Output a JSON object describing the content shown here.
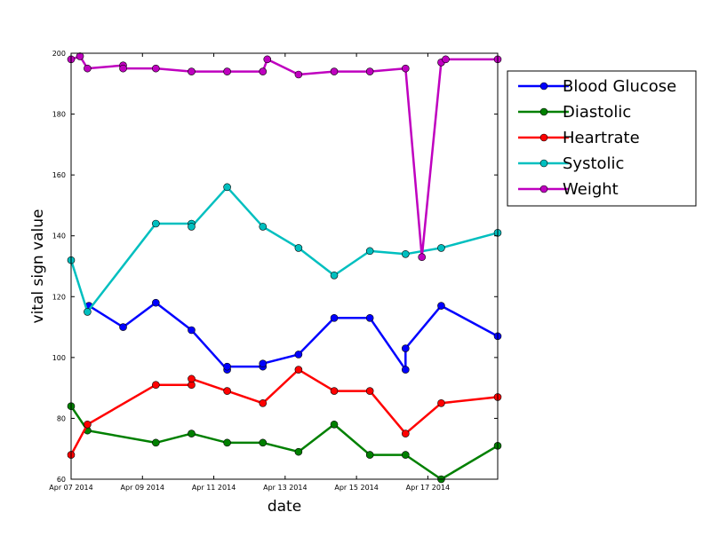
{
  "chart_data": {
    "type": "line",
    "title": "",
    "xlabel": "date",
    "ylabel": "vital sign value",
    "xlim": [
      "2014-04-07",
      "2014-04-18T23:00"
    ],
    "ylim": [
      60,
      200
    ],
    "x_ticks": [
      {
        "x": "2014-04-07",
        "label": "Apr 07 2014"
      },
      {
        "x": "2014-04-09",
        "label": "Apr 09 2014"
      },
      {
        "x": "2014-04-11",
        "label": "Apr 11 2014"
      },
      {
        "x": "2014-04-13",
        "label": "Apr 13 2014"
      },
      {
        "x": "2014-04-15",
        "label": "Apr 15 2014"
      },
      {
        "x": "2014-04-17",
        "label": "Apr 17 2014"
      }
    ],
    "y_ticks": [
      60,
      80,
      100,
      120,
      140,
      160,
      180,
      200
    ],
    "grid": false,
    "legend_position": "outside right, top",
    "series": [
      {
        "name": "Blood Glucose",
        "color": "#0000ff",
        "points": [
          {
            "x": "2014-04-07T12:00",
            "y": 117
          },
          {
            "x": "2014-04-08T11:00",
            "y": 110
          },
          {
            "x": "2014-04-09T09:00",
            "y": 118
          },
          {
            "x": "2014-04-10T09:00",
            "y": 109
          },
          {
            "x": "2014-04-11T09:00",
            "y": 96
          },
          {
            "x": "2014-04-11T09:00",
            "y": 97
          },
          {
            "x": "2014-04-12T09:00",
            "y": 97
          },
          {
            "x": "2014-04-12T09:00",
            "y": 98
          },
          {
            "x": "2014-04-13T09:00",
            "y": 101
          },
          {
            "x": "2014-04-14T09:00",
            "y": 113
          },
          {
            "x": "2014-04-15T09:00",
            "y": 113
          },
          {
            "x": "2014-04-16T09:00",
            "y": 96
          },
          {
            "x": "2014-04-16T09:00",
            "y": 103
          },
          {
            "x": "2014-04-17T09:00",
            "y": 117
          },
          {
            "x": "2014-04-18T23:00",
            "y": 107
          }
        ]
      },
      {
        "name": "Diastolic",
        "color": "#008000",
        "points": [
          {
            "x": "2014-04-07T00:00",
            "y": 84
          },
          {
            "x": "2014-04-07T11:00",
            "y": 76
          },
          {
            "x": "2014-04-09T09:00",
            "y": 72
          },
          {
            "x": "2014-04-10T09:00",
            "y": 75
          },
          {
            "x": "2014-04-11T09:00",
            "y": 72
          },
          {
            "x": "2014-04-12T09:00",
            "y": 72
          },
          {
            "x": "2014-04-13T09:00",
            "y": 69
          },
          {
            "x": "2014-04-14T09:00",
            "y": 78
          },
          {
            "x": "2014-04-15T09:00",
            "y": 68
          },
          {
            "x": "2014-04-16T09:00",
            "y": 68
          },
          {
            "x": "2014-04-17T09:00",
            "y": 60
          },
          {
            "x": "2014-04-18T23:00",
            "y": 71
          }
        ]
      },
      {
        "name": "Heartrate",
        "color": "#ff0000",
        "points": [
          {
            "x": "2014-04-07T00:00",
            "y": 68
          },
          {
            "x": "2014-04-07T11:00",
            "y": 78
          },
          {
            "x": "2014-04-09T09:00",
            "y": 91
          },
          {
            "x": "2014-04-10T09:00",
            "y": 91
          },
          {
            "x": "2014-04-10T09:00",
            "y": 93
          },
          {
            "x": "2014-04-11T09:00",
            "y": 89
          },
          {
            "x": "2014-04-12T09:00",
            "y": 85
          },
          {
            "x": "2014-04-13T09:00",
            "y": 96
          },
          {
            "x": "2014-04-14T09:00",
            "y": 89
          },
          {
            "x": "2014-04-15T09:00",
            "y": 89
          },
          {
            "x": "2014-04-16T09:00",
            "y": 75
          },
          {
            "x": "2014-04-17T09:00",
            "y": 85
          },
          {
            "x": "2014-04-18T23:00",
            "y": 87
          }
        ]
      },
      {
        "name": "Systolic",
        "color": "#00bfbf",
        "points": [
          {
            "x": "2014-04-07T00:00",
            "y": 132
          },
          {
            "x": "2014-04-07T11:00",
            "y": 115
          },
          {
            "x": "2014-04-09T09:00",
            "y": 144
          },
          {
            "x": "2014-04-10T09:00",
            "y": 144
          },
          {
            "x": "2014-04-10T09:00",
            "y": 143
          },
          {
            "x": "2014-04-11T09:00",
            "y": 156
          },
          {
            "x": "2014-04-12T09:00",
            "y": 143
          },
          {
            "x": "2014-04-13T09:00",
            "y": 136
          },
          {
            "x": "2014-04-14T09:00",
            "y": 127
          },
          {
            "x": "2014-04-15T09:00",
            "y": 135
          },
          {
            "x": "2014-04-16T09:00",
            "y": 134
          },
          {
            "x": "2014-04-17T09:00",
            "y": 136
          },
          {
            "x": "2014-04-18T23:00",
            "y": 141
          }
        ]
      },
      {
        "name": "Weight",
        "color": "#bf00bf",
        "points": [
          {
            "x": "2014-04-07T00:00",
            "y": 198
          },
          {
            "x": "2014-04-07T06:00",
            "y": 199
          },
          {
            "x": "2014-04-07T11:00",
            "y": 195
          },
          {
            "x": "2014-04-08T11:00",
            "y": 196
          },
          {
            "x": "2014-04-08T11:00",
            "y": 195
          },
          {
            "x": "2014-04-09T09:00",
            "y": 195
          },
          {
            "x": "2014-04-10T09:00",
            "y": 194
          },
          {
            "x": "2014-04-11T09:00",
            "y": 194
          },
          {
            "x": "2014-04-12T09:00",
            "y": 194
          },
          {
            "x": "2014-04-12T12:00",
            "y": 198
          },
          {
            "x": "2014-04-13T09:00",
            "y": 193
          },
          {
            "x": "2014-04-14T09:00",
            "y": 194
          },
          {
            "x": "2014-04-15T09:00",
            "y": 194
          },
          {
            "x": "2014-04-16T09:00",
            "y": 195
          },
          {
            "x": "2014-04-16T20:00",
            "y": 133
          },
          {
            "x": "2014-04-17T09:00",
            "y": 197
          },
          {
            "x": "2014-04-17T12:00",
            "y": 198
          },
          {
            "x": "2014-04-18T23:00",
            "y": 198
          }
        ]
      }
    ]
  }
}
